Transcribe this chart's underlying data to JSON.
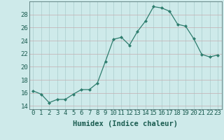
{
  "x": [
    0,
    1,
    2,
    3,
    4,
    5,
    6,
    7,
    8,
    9,
    10,
    11,
    12,
    13,
    14,
    15,
    16,
    17,
    18,
    19,
    20,
    21,
    22,
    23
  ],
  "y": [
    16.3,
    15.8,
    14.5,
    15.0,
    15.0,
    15.8,
    16.5,
    16.5,
    17.5,
    20.8,
    24.2,
    24.5,
    23.3,
    25.4,
    27.0,
    29.2,
    29.0,
    28.5,
    26.5,
    26.2,
    24.3,
    21.9,
    21.5,
    21.8
  ],
  "xlabel": "Humidex (Indice chaleur)",
  "xlim": [
    -0.5,
    23.5
  ],
  "ylim": [
    13.5,
    30.0
  ],
  "yticks": [
    14,
    16,
    18,
    20,
    22,
    24,
    26,
    28
  ],
  "xtick_labels": [
    "0",
    "1",
    "2",
    "3",
    "4",
    "5",
    "6",
    "7",
    "8",
    "9",
    "10",
    "11",
    "12",
    "13",
    "14",
    "15",
    "16",
    "17",
    "18",
    "19",
    "20",
    "21",
    "22",
    "23"
  ],
  "line_color": "#2e7d6e",
  "marker": "D",
  "marker_size": 2.0,
  "bg_color": "#ceeaea",
  "grid_color_x": "#aacccc",
  "grid_color_y": "#c4adb0",
  "axis_fontsize": 7.5,
  "tick_fontsize": 6.5,
  "label_color": "#1a5c50"
}
